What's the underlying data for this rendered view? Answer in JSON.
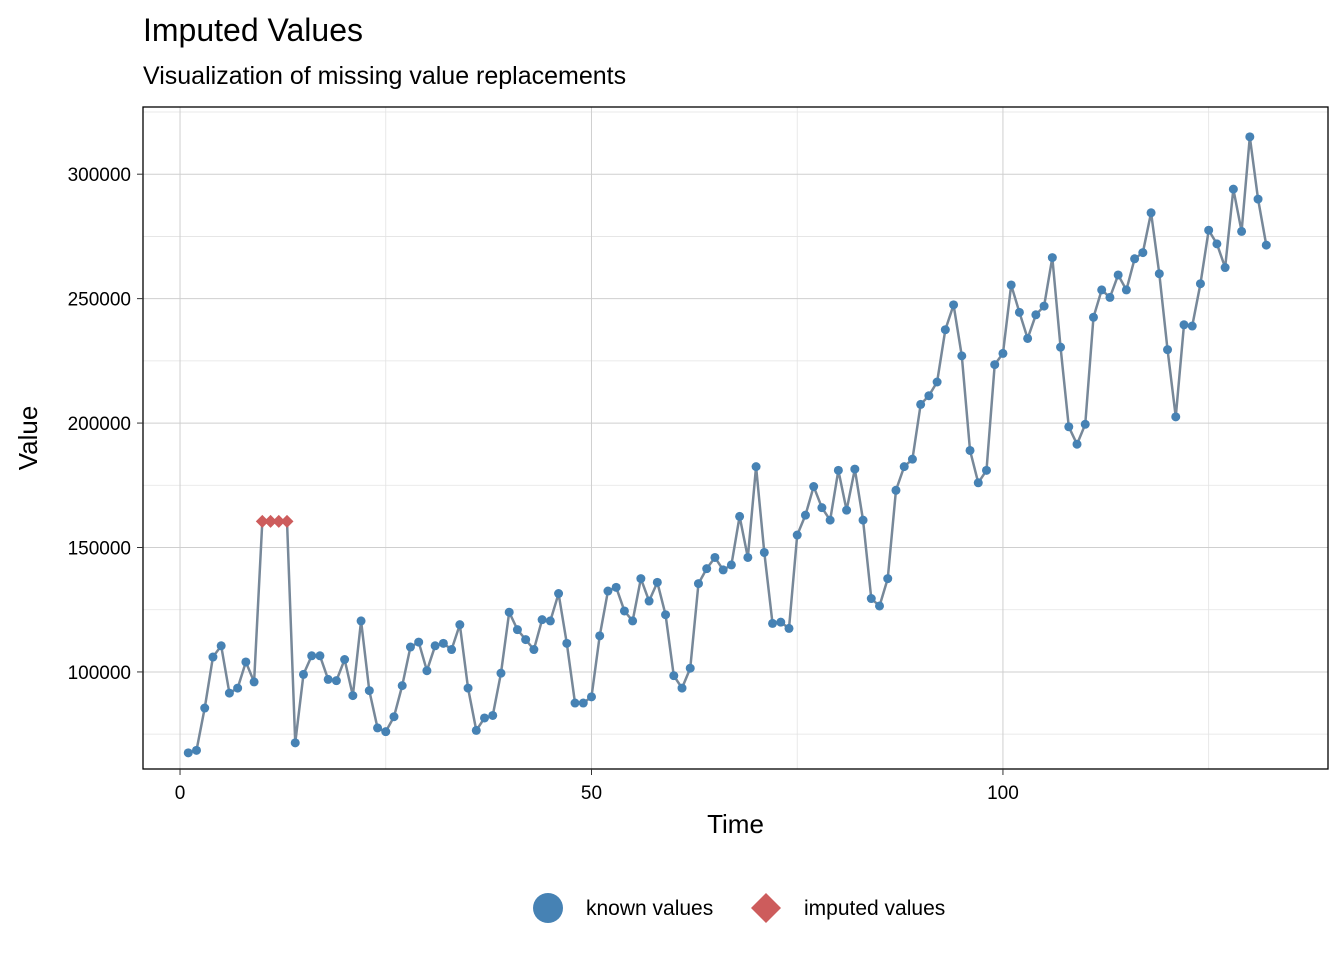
{
  "chart_data": {
    "type": "line",
    "title": "Imputed Values",
    "subtitle": "Visualization of missing value replacements",
    "xlabel": "Time",
    "ylabel": "Value",
    "xlim": [
      -4.5,
      139.5
    ],
    "ylim": [
      61000,
      327000
    ],
    "x_ticks": [
      0,
      50,
      100
    ],
    "y_ticks": [
      100000,
      150000,
      200000,
      250000,
      300000
    ],
    "y_tick_labels": [
      "100000",
      "150000",
      "200000",
      "250000",
      "300000"
    ],
    "x_minor_ticks": [
      25,
      75,
      125
    ],
    "y_minor_ticks": [
      75000,
      125000,
      175000,
      225000,
      275000,
      325000
    ],
    "grid": true,
    "legend_position": "bottom",
    "line_color": "#778899",
    "known_color": "#4682b4",
    "imputed_color": "#cd5c5c",
    "legend": [
      {
        "label": "known values",
        "marker": "circle",
        "color": "#4682b4"
      },
      {
        "label": "imputed values",
        "marker": "diamond",
        "color": "#cd5c5c"
      }
    ],
    "series": [
      {
        "x": [
          1,
          2,
          3,
          4,
          5,
          6,
          7,
          8,
          9,
          10,
          11,
          12,
          13,
          14,
          15,
          16,
          17,
          18,
          19,
          20,
          21,
          22,
          23,
          24,
          25,
          26,
          27,
          28,
          29,
          30,
          31,
          32,
          33,
          34,
          35,
          36,
          37,
          38,
          39,
          40,
          41,
          42,
          43,
          44,
          45,
          46,
          47,
          48,
          49,
          50,
          51,
          52,
          53,
          54,
          55,
          56,
          57,
          58,
          59,
          60,
          61,
          62,
          63,
          64,
          65,
          66,
          67,
          68,
          69,
          70,
          71,
          72,
          73,
          74,
          75,
          76,
          77,
          78,
          79,
          80,
          81,
          82,
          83,
          84,
          85,
          86,
          87,
          88,
          89,
          90,
          91,
          92,
          93,
          94,
          95,
          96,
          97,
          98,
          99,
          100,
          101,
          102,
          103,
          104,
          105,
          106,
          107,
          108,
          109,
          110,
          111,
          112,
          113,
          114,
          115,
          116,
          117,
          118,
          119,
          120,
          121,
          122,
          123,
          124,
          125,
          126,
          127,
          128,
          129,
          130,
          131,
          132
        ],
        "values": [
          67500,
          68500,
          85500,
          106000,
          110500,
          91500,
          93500,
          104000,
          96000,
          160500,
          160500,
          160500,
          160500,
          71500,
          99000,
          106500,
          106500,
          97000,
          96500,
          105000,
          90500,
          120500,
          92500,
          77500,
          76000,
          82000,
          94500,
          110000,
          112000,
          100500,
          110500,
          111500,
          109000,
          119000,
          93500,
          76500,
          81500,
          82500,
          99500,
          124000,
          117000,
          113000,
          109000,
          121000,
          120500,
          131500,
          111500,
          87500,
          87500,
          90000,
          114500,
          132500,
          134000,
          124500,
          120500,
          137500,
          128500,
          136000,
          123000,
          98500,
          93500,
          101500,
          135500,
          141500,
          146000,
          141000,
          143000,
          162500,
          146000,
          182500,
          148000,
          119500,
          120000,
          117500,
          155000,
          163000,
          174500,
          166000,
          161000,
          181000,
          165000,
          181500,
          161000,
          129500,
          126500,
          137500,
          173000,
          182500,
          185500,
          207500,
          211000,
          216500,
          237500,
          247500,
          227000,
          189000,
          176000,
          181000,
          223500,
          228000,
          255500,
          244500,
          234000,
          243500,
          247000,
          266500,
          230500,
          198500,
          191500,
          199500,
          242500,
          253500,
          250500,
          259500,
          253500,
          266000,
          268500,
          284500,
          260000,
          229500,
          202500,
          239500,
          239000,
          256000,
          277500,
          272000,
          262500,
          294000,
          277000,
          315000,
          290000,
          271500
        ],
        "imputed_x": [
          10,
          11,
          12,
          13
        ]
      }
    ]
  }
}
